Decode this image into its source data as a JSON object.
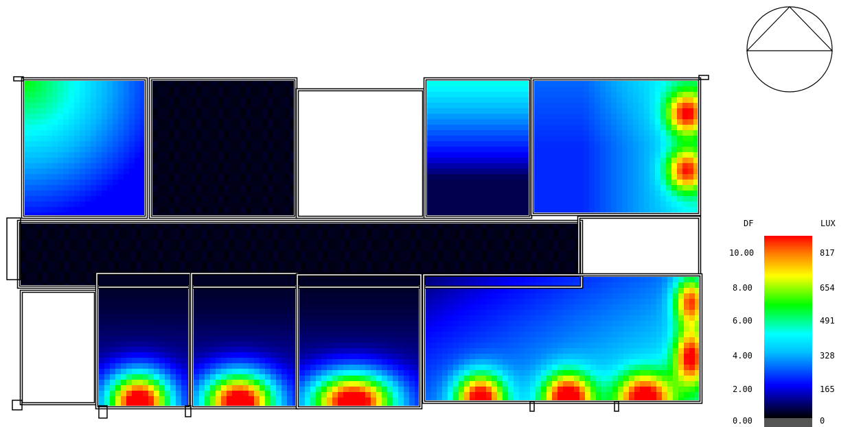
{
  "legend": {
    "df_header": "DF",
    "lux_header": "LUX",
    "df_ticks": [
      "10.00",
      "8.00",
      "6.00",
      "4.00",
      "2.00",
      "0.00"
    ],
    "lux_ticks": [
      "817",
      "654",
      "491",
      "328",
      "165",
      "0"
    ],
    "max_df": 10,
    "max_lux": 817
  },
  "colors": {
    "scale": [
      "#000000",
      "#0000ff",
      "#00bfff",
      "#00ffff",
      "#00ff00",
      "#ffff00",
      "#ff7f00",
      "#ff0000"
    ],
    "zero_block": "#555555",
    "unmeasured": "#ffffff"
  },
  "rooms": [
    {
      "id": "room-top-1",
      "field": "window-corner-tl"
    },
    {
      "id": "room-top-2",
      "field": "dark"
    },
    {
      "id": "room-top-3",
      "field": "unmeasured"
    },
    {
      "id": "room-top-4",
      "field": "window-top"
    },
    {
      "id": "room-top-5",
      "field": "window-right-strong"
    },
    {
      "id": "corridor",
      "field": "dark"
    },
    {
      "id": "room-mid-right",
      "field": "unmeasured"
    },
    {
      "id": "room-bot-1",
      "field": "unmeasured"
    },
    {
      "id": "room-bot-2",
      "field": "window-bottom-spot"
    },
    {
      "id": "room-bot-3",
      "field": "window-bottom-spot"
    },
    {
      "id": "room-bot-4",
      "field": "window-bottom-spot"
    },
    {
      "id": "room-bot-5",
      "field": "window-bottom-multi"
    }
  ]
}
